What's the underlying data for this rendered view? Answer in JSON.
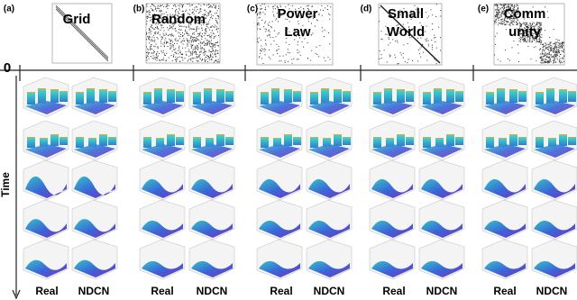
{
  "panels": [
    {
      "label": "(a)",
      "title": [
        "Grid"
      ],
      "columns": [
        "Real",
        "NDCN"
      ]
    },
    {
      "label": "(b)",
      "title": [
        "Random"
      ],
      "columns": [
        "Real",
        "NDCN"
      ]
    },
    {
      "label": "(c)",
      "title": [
        "Power",
        "Law"
      ],
      "columns": [
        "Real",
        "NDCN"
      ]
    },
    {
      "label": "(d)",
      "title": [
        "Small",
        "World"
      ],
      "columns": [
        "Real",
        "NDCN"
      ]
    },
    {
      "label": "(e)",
      "title": [
        "Comm",
        "unity"
      ],
      "columns": [
        "Real",
        "NDCN"
      ]
    }
  ],
  "time_axis": {
    "origin": "0",
    "label": "Time"
  }
}
